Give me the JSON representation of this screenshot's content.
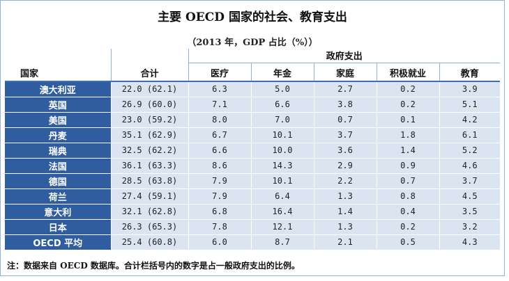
{
  "title": "主要 OECD 国家的社会、教育支出",
  "subtitle": "（2013 年，GDP 占比（%））",
  "header": {
    "country": "国家",
    "total": "合计",
    "gov_group": "政府支出",
    "cols": [
      "医疗",
      "年金",
      "家庭",
      "积极就业",
      "教育"
    ]
  },
  "rows": [
    {
      "country": "澳大利亚",
      "total": "22.0 (62.1)",
      "vals": [
        "6.3",
        "5.0",
        "2.7",
        "0.2",
        "3.9"
      ]
    },
    {
      "country": "英国",
      "total": "26.9 (60.0)",
      "vals": [
        "7.1",
        "6.6",
        "3.8",
        "0.2",
        "5.1"
      ]
    },
    {
      "country": "美国",
      "total": "23.0 (59.2)",
      "vals": [
        "8.0",
        "7.0",
        "0.7",
        "0.1",
        "4.2"
      ]
    },
    {
      "country": "丹麦",
      "total": "35.1 (62.9)",
      "vals": [
        "6.7",
        "10.1",
        "3.7",
        "1.8",
        "6.1"
      ]
    },
    {
      "country": "瑞典",
      "total": "32.5 (62.2)",
      "vals": [
        "6.6",
        "10.0",
        "3.6",
        "1.4",
        "5.2"
      ]
    },
    {
      "country": "法国",
      "total": "36.1 (63.3)",
      "vals": [
        "8.6",
        "14.3",
        "2.9",
        "0.9",
        "4.6"
      ]
    },
    {
      "country": "德国",
      "total": "28.5 (63.8)",
      "vals": [
        "7.9",
        "10.1",
        "2.2",
        "0.7",
        "3.7"
      ]
    },
    {
      "country": "荷兰",
      "total": "27.4 (59.1)",
      "vals": [
        "7.9",
        "6.4",
        "1.3",
        "0.8",
        "4.5"
      ]
    },
    {
      "country": "意大利",
      "total": "32.1 (62.8)",
      "vals": [
        "6.8",
        "16.4",
        "1.4",
        "0.4",
        "3.5"
      ]
    },
    {
      "country": "日本",
      "total": "26.3 (65.3)",
      "vals": [
        "7.8",
        "12.1",
        "1.3",
        "0.2",
        "3.2"
      ]
    },
    {
      "country": "OECD 平均",
      "total": "25.4 (60.8)",
      "vals": [
        "6.0",
        "8.7",
        "2.1",
        "0.5",
        "4.3"
      ]
    }
  ],
  "note": "注：数据来自 OECD 数据库。合计栏括号内的数字是占一般政府支出的比例。"
}
